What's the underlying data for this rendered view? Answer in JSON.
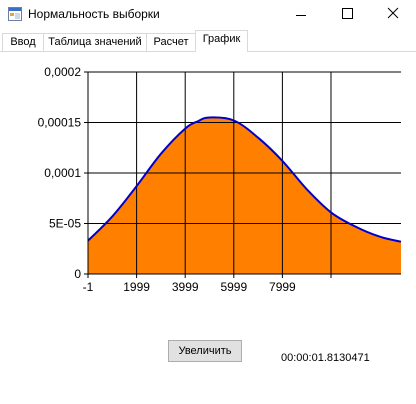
{
  "window": {
    "title": "Нормальность выборки",
    "icon": "app-window-icon",
    "controls": {
      "minimize": "minimize-icon",
      "maximize": "maximize-icon",
      "close": "close-icon"
    }
  },
  "tabs": [
    {
      "label": "Ввод",
      "active": false
    },
    {
      "label": "Таблица значений",
      "active": false
    },
    {
      "label": "Расчет",
      "active": false
    },
    {
      "label": "График",
      "active": true
    }
  ],
  "chart_data": {
    "type": "area",
    "title": "",
    "xlabel": "",
    "ylabel": "",
    "x_ticks": [
      "-1",
      "1999",
      "3999",
      "5999",
      "7999"
    ],
    "y_ticks": [
      "0",
      "5E-05",
      "0,0001",
      "0,00015",
      "0,0002"
    ],
    "xlim": [
      -1,
      12880
    ],
    "ylim": [
      0,
      0.0002
    ],
    "grid": true,
    "legend": "none",
    "series": [
      {
        "x": [
          -1,
          1000,
          2000,
          3000,
          4000,
          4500,
          5000,
          6000,
          7000,
          8000,
          9000,
          10000,
          11000,
          12000,
          12880
        ],
        "values": [
          3.3e-05,
          5.7e-05,
          8.7e-05,
          0.000119,
          0.000144,
          0.000151,
          0.000155,
          0.000152,
          0.000135,
          0.000112,
          8.4e-05,
          6.1e-05,
          4.7e-05,
          3.7e-05,
          3.2e-05
        ]
      }
    ],
    "colors": {
      "fill": "#ff8000",
      "line": "#0000cc",
      "grid": "#000000"
    }
  },
  "controls": {
    "zoom_button_label": "Увеличить",
    "elapsed_time": "00:00:01.8130471"
  }
}
